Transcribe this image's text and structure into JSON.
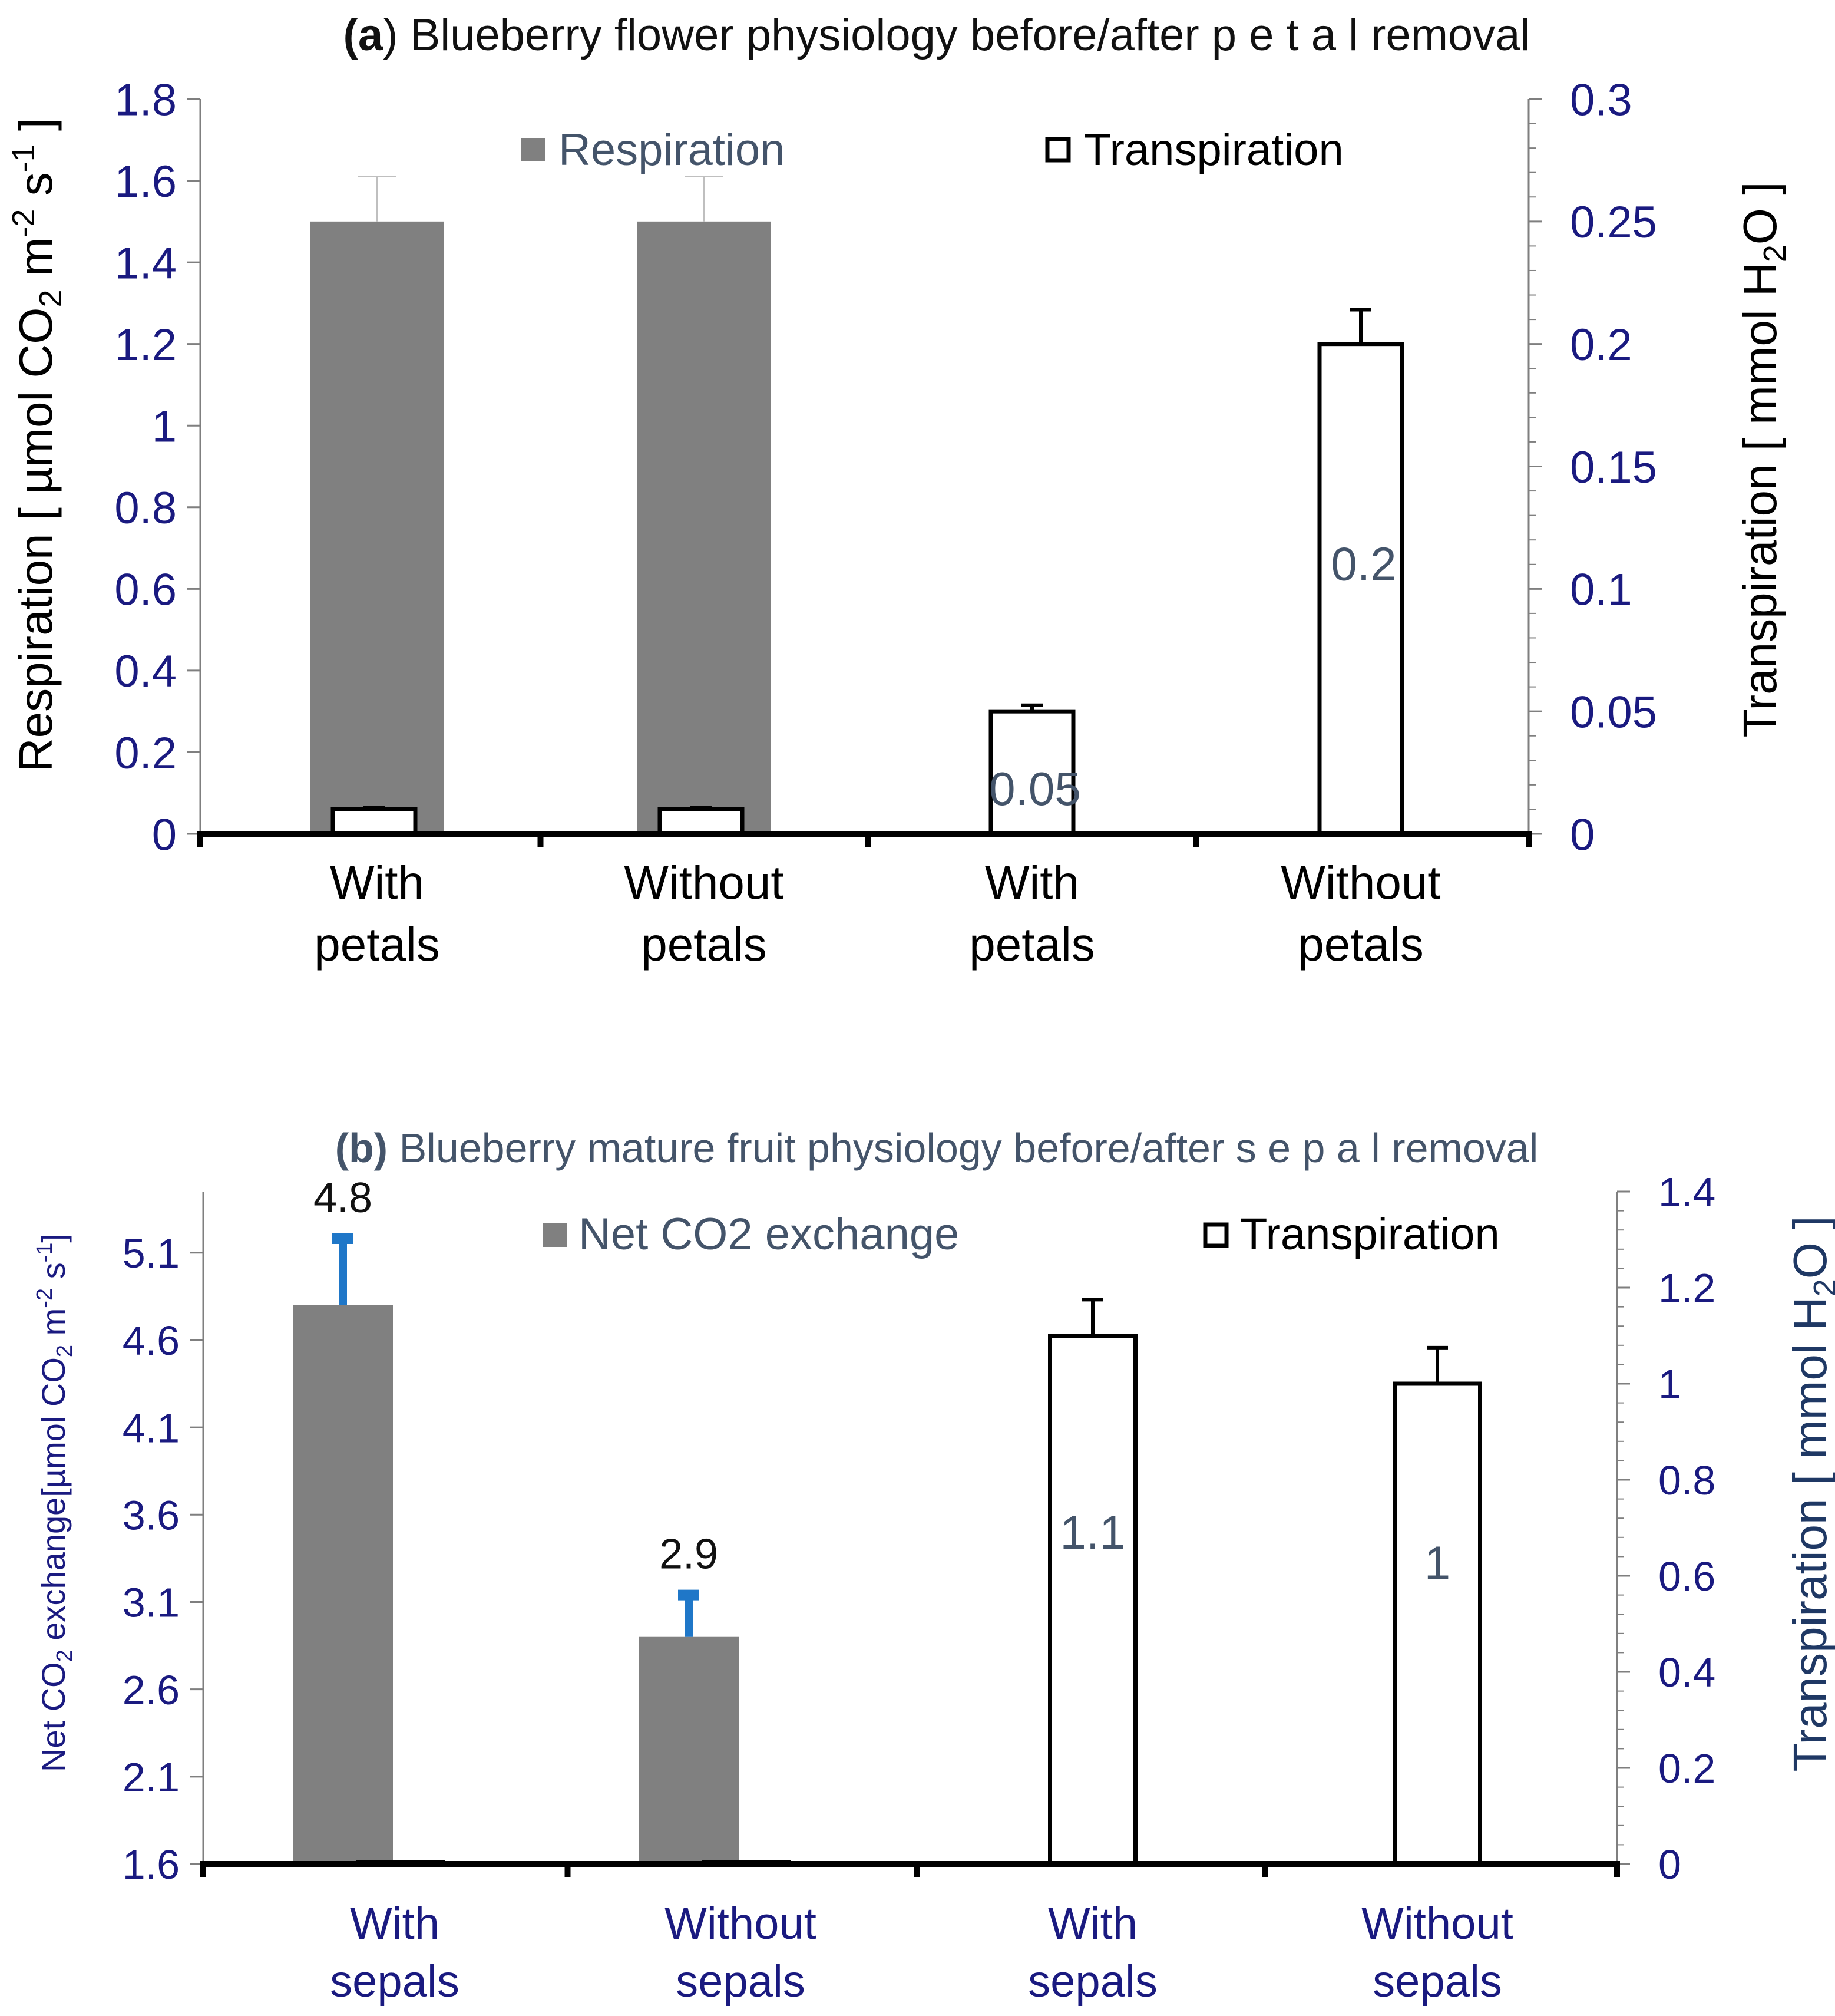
{
  "chart_data": [
    {
      "id": "a",
      "type": "bar",
      "title_bold": "(a",
      "title": ") Blueberry flower physiology before/after p e t a l removal",
      "categories": [
        {
          "line1": "With",
          "line2": "petals"
        },
        {
          "line1": "Without",
          "line2": "petals"
        },
        {
          "line1": "With",
          "line2": "petals"
        },
        {
          "line1": "Without",
          "line2": "petals"
        }
      ],
      "ylabel_left": {
        "main": "Respiration [ µmol CO",
        "sub": "2",
        "mid": " m",
        "sup1": "-2",
        "end": " s",
        "sup2": "-1",
        "close": " ]"
      },
      "ylabel_right": {
        "main": "Transpiration [ mmol H",
        "sub": "2",
        "end": "O ]"
      },
      "y_left": {
        "min": 0,
        "max": 1.8,
        "ticks": [
          "0",
          "0.2",
          "0.4",
          "0.6",
          "0.8",
          "1",
          "1.2",
          "1.4",
          "1.6",
          "1.8"
        ]
      },
      "y_right": {
        "min": 0,
        "max": 0.3,
        "ticks": [
          "0",
          "0.05",
          "0.1",
          "0.15",
          "0.2",
          "0.25",
          "0.3"
        ]
      },
      "legend": {
        "left_label": "Respiration",
        "right_label": "Transpiration",
        "position": "top"
      },
      "series": [
        {
          "name": "Respiration",
          "axis": "left",
          "color": "#808080",
          "values": [
            1.5,
            1.5,
            null,
            null
          ],
          "errors": [
            0.11,
            0.11,
            null,
            null
          ]
        },
        {
          "name": "Transpiration",
          "axis": "right",
          "color": "#ffffff",
          "values": [
            0.01,
            0.01,
            0.05,
            0.2
          ],
          "errors": [
            0.0008,
            0.0008,
            0.0025,
            0.014
          ]
        }
      ],
      "data_labels": [
        {
          "cat": 2,
          "text": "0.05"
        },
        {
          "cat": 3,
          "text": "0.2"
        }
      ]
    },
    {
      "id": "b",
      "type": "bar",
      "title_bold": "(b)",
      "title": " Blueberry mature fruit physiology before/after s e p a l removal",
      "categories": [
        {
          "line1": "With",
          "line2": "sepals"
        },
        {
          "line1": "Without",
          "line2": "sepals"
        },
        {
          "line1": "With",
          "line2": "sepals"
        },
        {
          "line1": "Without",
          "line2": "sepals"
        }
      ],
      "ylabel_left": {
        "main": "Net CO",
        "sub": "2",
        "mid": " exchange[µmol CO",
        "sub2": "2",
        "mid2": " m",
        "sup1": "-2",
        "end": " s",
        "sup2": "-1",
        "close": "]"
      },
      "ylabel_right": {
        "main": "Transpiration [ mmol H",
        "sub": "2",
        "end": "O ]"
      },
      "y_left": {
        "min": 1.6,
        "max": 5.45,
        "ticks": [
          "1.6",
          "2.1",
          "2.6",
          "3.1",
          "3.6",
          "4.1",
          "4.6",
          "5.1"
        ]
      },
      "y_right": {
        "min": 0,
        "max": 1.4,
        "ticks": [
          "0",
          "0.2",
          "0.4",
          "0.6",
          "0.8",
          "1",
          "1.2",
          "1.4"
        ]
      },
      "legend": {
        "left_label": "Net CO2 exchange",
        "right_label": "Transpiration",
        "position": "top"
      },
      "series": [
        {
          "name": "Net CO2 exchange",
          "axis": "left",
          "color": "#808080",
          "error_color": "#1f77c8",
          "values": [
            4.8,
            2.9,
            null,
            null
          ],
          "errors": [
            0.38,
            0.24,
            null,
            null
          ]
        },
        {
          "name": "Transpiration",
          "axis": "right",
          "color": "#ffffff",
          "values": [
            0.004,
            0.004,
            1.1,
            1.0
          ],
          "errors": [
            0.0004,
            0.0004,
            0.075,
            0.075
          ]
        }
      ],
      "data_labels": [
        {
          "cat": 0,
          "text": "4.8",
          "series": "Net CO2 exchange"
        },
        {
          "cat": 1,
          "text": "2.9",
          "series": "Net CO2 exchange"
        },
        {
          "cat": 2,
          "text": "1.1",
          "series": "Transpiration"
        },
        {
          "cat": 3,
          "text": "1",
          "series": "Transpiration"
        }
      ]
    }
  ],
  "colors": {
    "axis_tick": "#1a1a80",
    "label_dark": "#44546a",
    "bar_gray": "#808080",
    "error_blue": "#1f77c8"
  }
}
